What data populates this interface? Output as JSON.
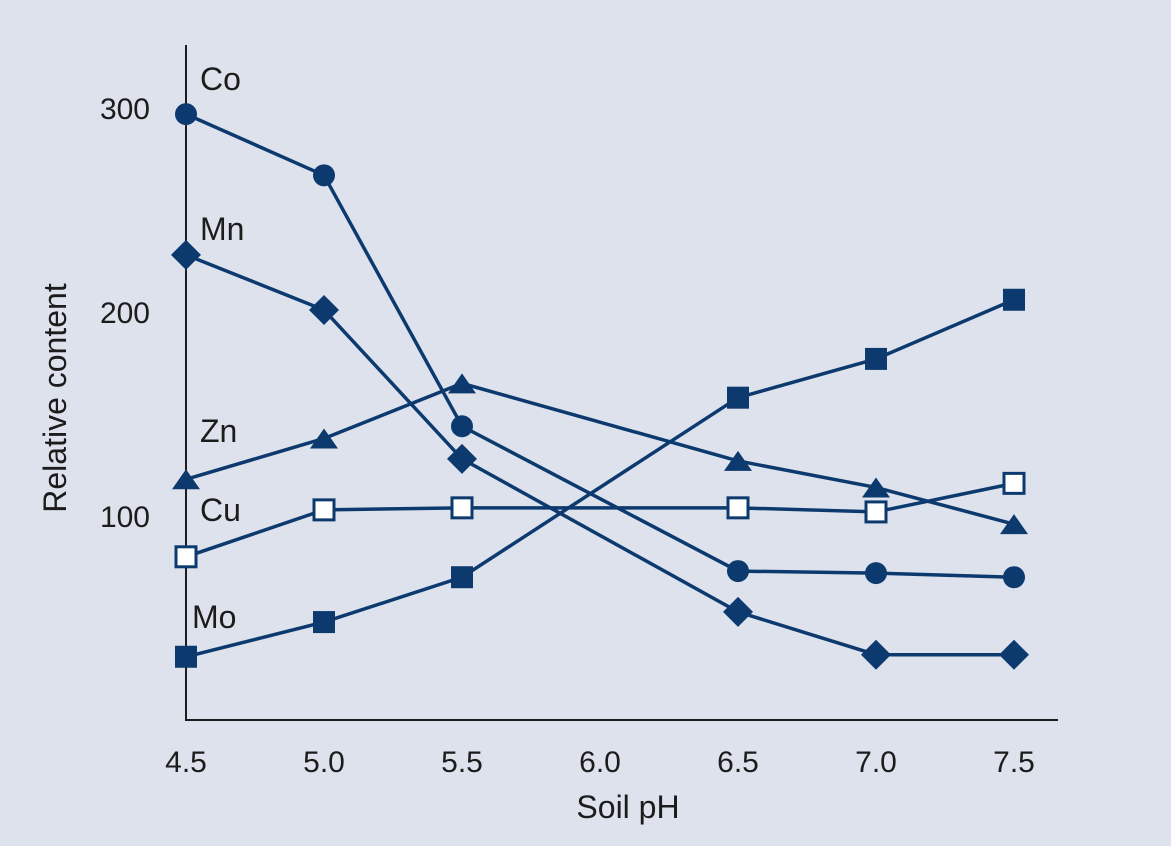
{
  "colors": {
    "background": "#dde2ed",
    "series": "#0d3a6e",
    "axis": "#1c1c1c",
    "open_fill": "#ffffff"
  },
  "chart_data": {
    "type": "line",
    "title": "",
    "xlabel": "Soil pH",
    "ylabel": "Relative content",
    "x_ticks": [
      "4.5",
      "5.0",
      "5.5",
      "6.0",
      "6.5",
      "7.0",
      "7.5"
    ],
    "y_ticks": [
      "100",
      "200",
      "300"
    ],
    "xlim": [
      4.5,
      7.5
    ],
    "ylim": [
      0,
      330
    ],
    "grid": false,
    "series": [
      {
        "name": "Co",
        "marker": "circle",
        "points": [
          [
            4.5,
            297
          ],
          [
            5.0,
            267
          ],
          [
            5.5,
            144
          ],
          [
            6.5,
            73
          ],
          [
            7.0,
            72
          ],
          [
            7.5,
            70
          ]
        ]
      },
      {
        "name": "Mn",
        "marker": "diamond",
        "points": [
          [
            4.5,
            228
          ],
          [
            5.0,
            201
          ],
          [
            5.5,
            128
          ],
          [
            6.5,
            53
          ],
          [
            7.0,
            32
          ],
          [
            7.5,
            32
          ]
        ]
      },
      {
        "name": "Zn",
        "marker": "triangle",
        "points": [
          [
            4.5,
            118
          ],
          [
            5.0,
            138
          ],
          [
            5.5,
            165
          ],
          [
            6.5,
            127
          ],
          [
            7.0,
            114
          ],
          [
            7.5,
            96
          ]
        ]
      },
      {
        "name": "Cu",
        "marker": "open-square",
        "points": [
          [
            4.5,
            80
          ],
          [
            5.0,
            103
          ],
          [
            5.5,
            104
          ],
          [
            6.5,
            104
          ],
          [
            7.0,
            102
          ],
          [
            7.5,
            116
          ]
        ]
      },
      {
        "name": "Mo",
        "marker": "square",
        "points": [
          [
            4.5,
            31
          ],
          [
            5.0,
            48
          ],
          [
            5.5,
            70
          ],
          [
            6.5,
            158
          ],
          [
            7.0,
            177
          ],
          [
            7.5,
            206
          ]
        ]
      }
    ]
  }
}
